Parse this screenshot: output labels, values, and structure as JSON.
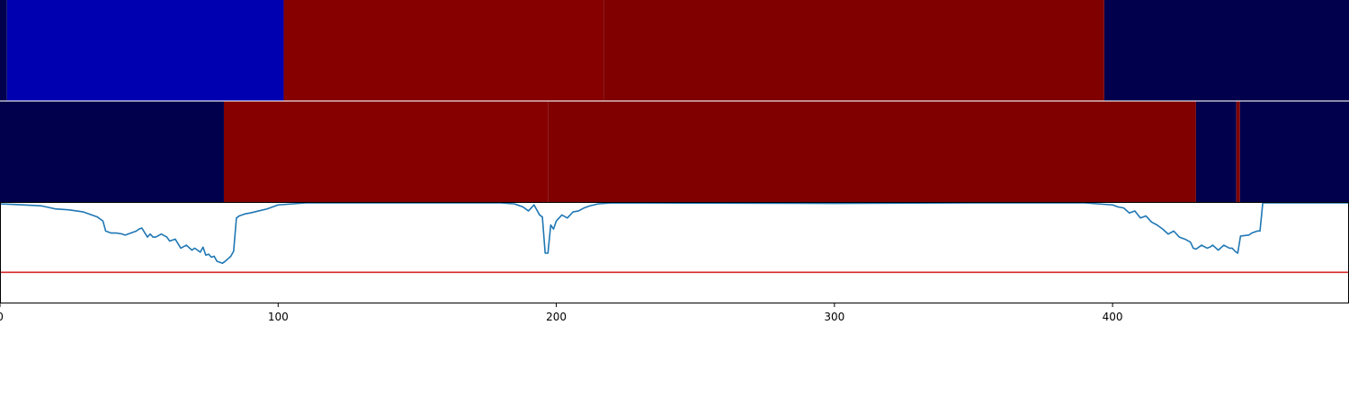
{
  "chart_data": [
    {
      "type": "heatmap",
      "xlim": [
        0,
        485
      ],
      "color_scale": {
        "min_color": "#00004d",
        "mid_color": "#ffffff",
        "max_color": "#800000"
      },
      "segments": [
        {
          "x0": 0,
          "x1": 2.5,
          "color": "#00004d"
        },
        {
          "x0": 2.5,
          "x1": 102,
          "color": "#0000b0"
        },
        {
          "x0": 102,
          "x1": 217,
          "color": "#860000"
        },
        {
          "x0": 217,
          "x1": 397,
          "color": "#800000"
        },
        {
          "x0": 397,
          "x1": 485,
          "color": "#00004d"
        }
      ]
    },
    {
      "type": "heatmap",
      "xlim": [
        0,
        485
      ],
      "segments": [
        {
          "x0": 0,
          "x1": 80.5,
          "color": "#00004d"
        },
        {
          "x0": 80.5,
          "x1": 197,
          "color": "#860000"
        },
        {
          "x0": 197,
          "x1": 430,
          "color": "#800000"
        },
        {
          "x0": 430,
          "x1": 444.5,
          "color": "#00004d"
        },
        {
          "x0": 444.5,
          "x1": 445.8,
          "color": "#800000"
        },
        {
          "x0": 445.8,
          "x1": 485,
          "color": "#00004d"
        }
      ]
    },
    {
      "type": "line",
      "xlim": [
        0,
        485
      ],
      "ylim": [
        0,
        1
      ],
      "xticks": [
        0,
        100,
        200,
        300,
        400
      ],
      "xtick_labels": [
        "0",
        "100",
        "200",
        "300",
        "400"
      ],
      "threshold": {
        "y": 0.31,
        "color": "#d62728"
      },
      "series": [
        {
          "color": "#1f77b4",
          "x": [
            0,
            5,
            15,
            20,
            25,
            30,
            35,
            37,
            38,
            40,
            42,
            44,
            45,
            47,
            49,
            50,
            51,
            53,
            54,
            55,
            56,
            58,
            60,
            61,
            63,
            65,
            67,
            69,
            70,
            72,
            73,
            74,
            75,
            76,
            77,
            78,
            80,
            81,
            83,
            84,
            85,
            86,
            88,
            90,
            93,
            96,
            100,
            105,
            110,
            150,
            180,
            185,
            188,
            190,
            192,
            194,
            195,
            196,
            197,
            198,
            199,
            200,
            202,
            204,
            206,
            208,
            210,
            212,
            215,
            220,
            300,
            350,
            390,
            395,
            400,
            402,
            404,
            406,
            408,
            410,
            412,
            414,
            416,
            418,
            420,
            422,
            424,
            426,
            428,
            429,
            430,
            432,
            434,
            435,
            436,
            438,
            440,
            442,
            443,
            444,
            445,
            446,
            449,
            450,
            451,
            452,
            453,
            454,
            485
          ],
          "y": [
            0.99,
            0.985,
            0.97,
            0.94,
            0.93,
            0.91,
            0.86,
            0.82,
            0.72,
            0.7,
            0.7,
            0.69,
            0.68,
            0.7,
            0.72,
            0.74,
            0.75,
            0.66,
            0.69,
            0.66,
            0.66,
            0.69,
            0.66,
            0.62,
            0.64,
            0.55,
            0.58,
            0.53,
            0.55,
            0.51,
            0.56,
            0.48,
            0.49,
            0.46,
            0.47,
            0.42,
            0.4,
            0.42,
            0.47,
            0.52,
            0.85,
            0.87,
            0.89,
            0.9,
            0.92,
            0.94,
            0.98,
            0.99,
            1.0,
            1.0,
            1.0,
            0.99,
            0.96,
            0.92,
            0.98,
            0.88,
            0.86,
            0.5,
            0.5,
            0.78,
            0.74,
            0.82,
            0.88,
            0.85,
            0.91,
            0.92,
            0.95,
            0.97,
            0.99,
            1.0,
            0.995,
            1.0,
            1.0,
            0.99,
            0.98,
            0.96,
            0.95,
            0.9,
            0.92,
            0.85,
            0.87,
            0.81,
            0.78,
            0.74,
            0.69,
            0.72,
            0.66,
            0.64,
            0.61,
            0.55,
            0.54,
            0.58,
            0.55,
            0.56,
            0.58,
            0.53,
            0.58,
            0.55,
            0.55,
            0.52,
            0.5,
            0.67,
            0.68,
            0.7,
            0.71,
            0.72,
            0.72,
            1.0,
            1.0
          ]
        }
      ]
    }
  ]
}
